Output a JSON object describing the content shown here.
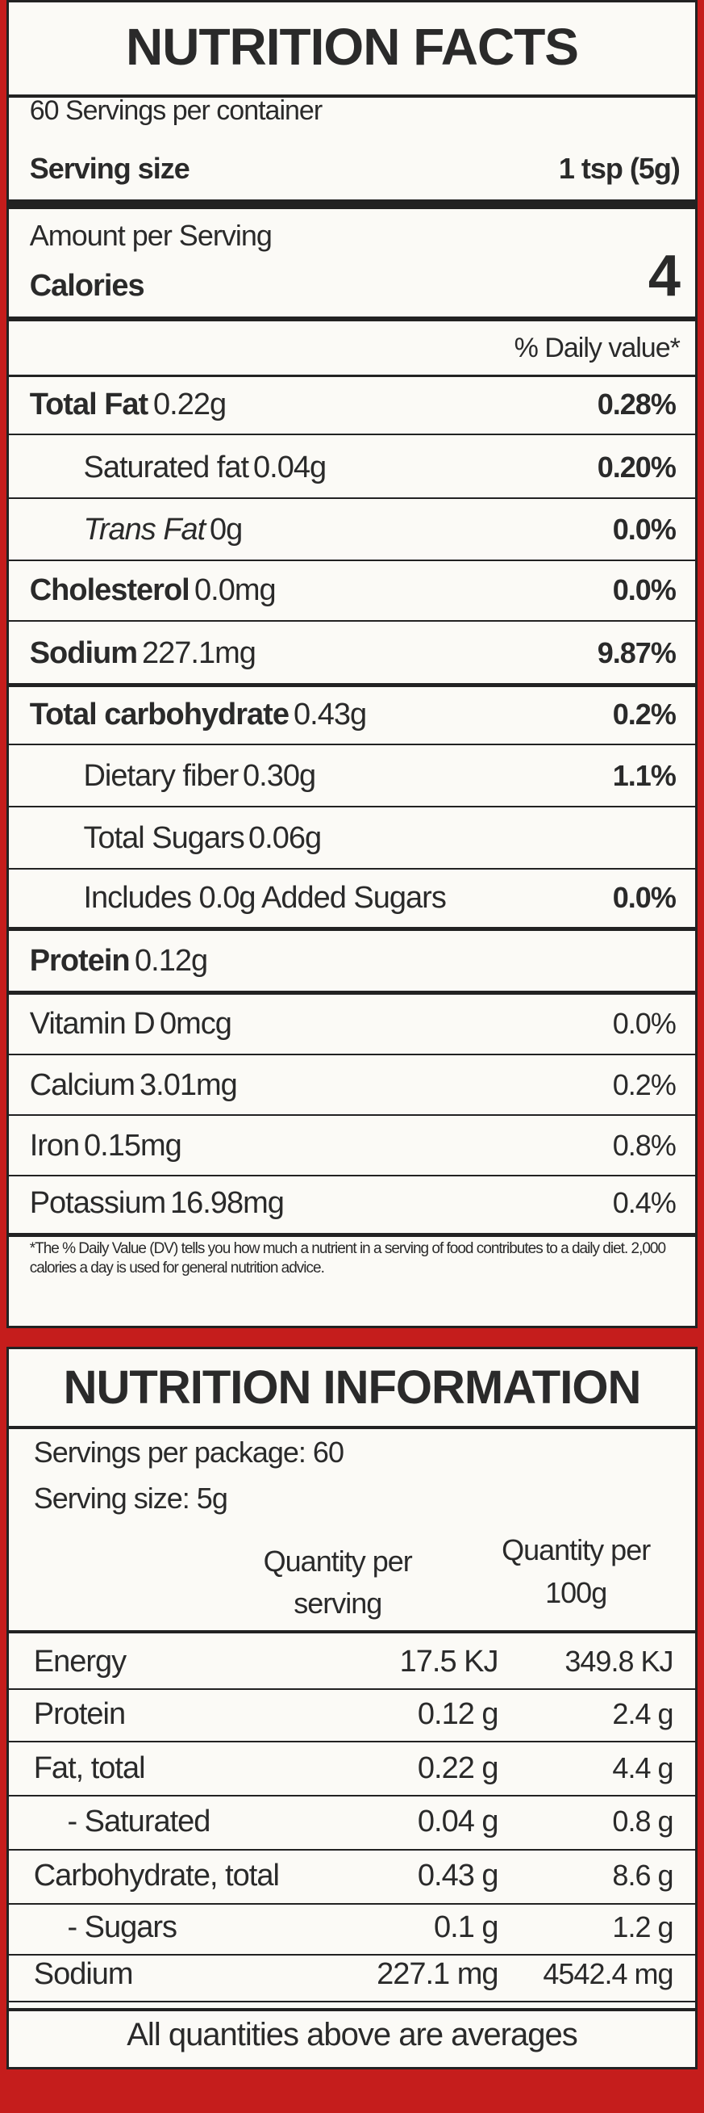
{
  "nutrition_facts": {
    "title": "NUTRITION FACTS",
    "servings_per_container": "60 Servings per container",
    "serving_size_label": "Serving size",
    "serving_size_value": "1 tsp (5g)",
    "amount_per_serving": "Amount per Serving",
    "calories_label": "Calories",
    "calories_value": "4",
    "daily_value_header": "% Daily value*",
    "rows": [
      {
        "name": "Total Fat",
        "amount": "0.22g",
        "dv": "0.28%"
      },
      {
        "name": "Saturated fat",
        "amount": "0.04g",
        "dv": "0.20%"
      },
      {
        "name": "Trans Fat",
        "amount": "0g",
        "dv": "0.0%"
      },
      {
        "name": "Cholesterol",
        "amount": "0.0mg",
        "dv": "0.0%"
      },
      {
        "name": "Sodium",
        "amount": "227.1mg",
        "dv": "9.87%"
      },
      {
        "name": "Total carbohydrate",
        "amount": "0.43g",
        "dv": "0.2%"
      },
      {
        "name": "Dietary fiber",
        "amount": "0.30g",
        "dv": "1.1%"
      },
      {
        "name": "Total Sugars",
        "amount": "0.06g"
      },
      {
        "name": "Includes 0.0g Added Sugars",
        "dv": "0.0%"
      },
      {
        "name": "Protein",
        "amount": "0.12g"
      },
      {
        "name": "Vitamin D",
        "amount": "0mcg",
        "dv": "0.0%"
      },
      {
        "name": "Calcium",
        "amount": "3.01mg",
        "dv": "0.2%"
      },
      {
        "name": "Iron",
        "amount": "0.15mg",
        "dv": "0.8%"
      },
      {
        "name": "Potassium",
        "amount": "16.98mg",
        "dv": "0.4%"
      }
    ],
    "footnote": "*The % Daily Value (DV) tells you how much a nutrient in a serving of food contributes to a daily diet. 2,000 calories a day is used for general nutrition advice."
  },
  "nutrition_information": {
    "title": "NUTRITION INFORMATION",
    "servings_per_package": "Servings per package: 60",
    "serving_size": "Serving size: 5g",
    "column_headers": [
      "Quantity per serving",
      "Quantity per 100g"
    ],
    "rows": [
      {
        "name": "Energy",
        "per_serving": "17.5 KJ",
        "per_100g": "349.8 KJ"
      },
      {
        "name": "Protein",
        "per_serving": "0.12 g",
        "per_100g": "2.4 g"
      },
      {
        "name": "Fat, total",
        "per_serving": "0.22 g",
        "per_100g": "4.4 g"
      },
      {
        "name": "- Saturated",
        "per_serving": "0.04 g",
        "per_100g": "0.8 g"
      },
      {
        "name": "Carbohydrate, total",
        "per_serving": "0.43 g",
        "per_100g": "8.6 g"
      },
      {
        "name": "- Sugars",
        "per_serving": "0.1 g",
        "per_100g": "1.2 g"
      },
      {
        "name": "Sodium",
        "per_serving": "227.1 mg",
        "per_100g": "4542.4 mg"
      }
    ],
    "footer": "All quantities above are averages"
  }
}
